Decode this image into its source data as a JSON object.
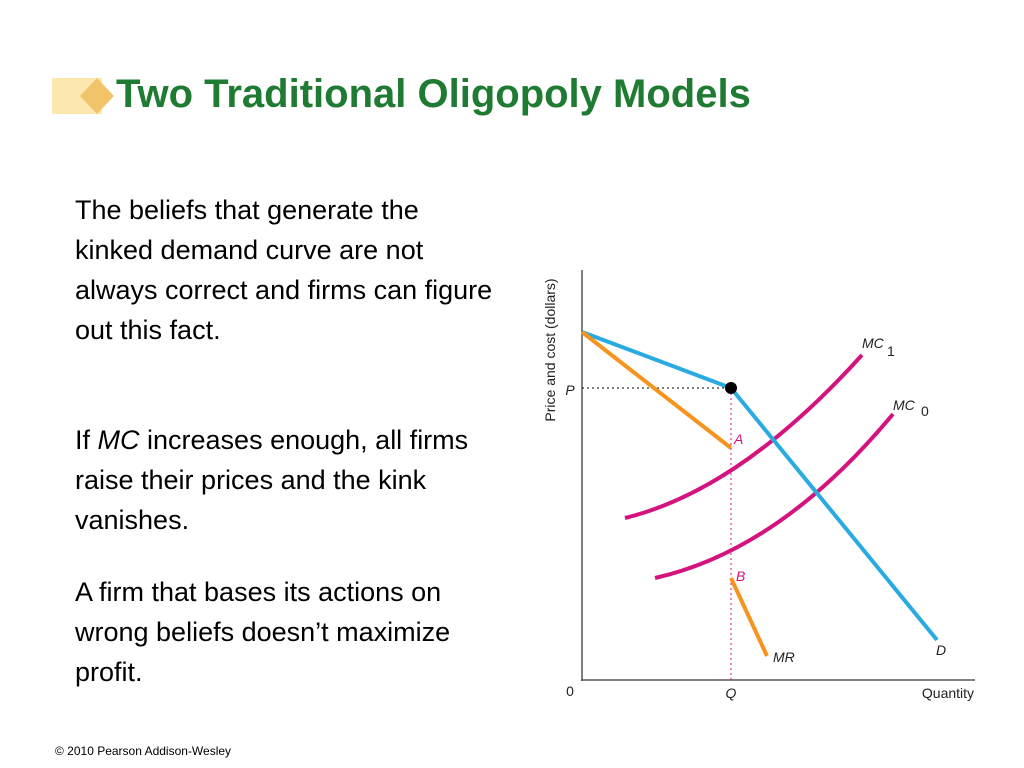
{
  "header": {
    "title": "Two Traditional Oligopoly Models"
  },
  "body": {
    "paragraphs": [
      {
        "parts": [
          "The beliefs that generate the kinked demand curve are not always correct and firms can figure out this fact."
        ]
      },
      {
        "parts": [
          "If ",
          "MC",
          " increases enough, all firms raise their prices and the kink vanishes."
        ]
      },
      {
        "parts": [
          "A firm that bases its actions on wrong beliefs doesn’t maximize profit."
        ]
      }
    ]
  },
  "diagram": {
    "y_axis_label": "Price and cost (dollars)",
    "x_axis_label": "Quantity",
    "origin": "0",
    "price_label": "P",
    "quantity_label": "Q",
    "point_a": "A",
    "point_b": "B",
    "mr_label": "MR",
    "demand_label": "D",
    "mc1_label": {
      "name": "MC",
      "sub": "1"
    },
    "mc0_label": {
      "name": "MC",
      "sub": "0"
    }
  },
  "footer": {
    "copyright": "© 2010 Pearson Addison-Wesley"
  }
}
